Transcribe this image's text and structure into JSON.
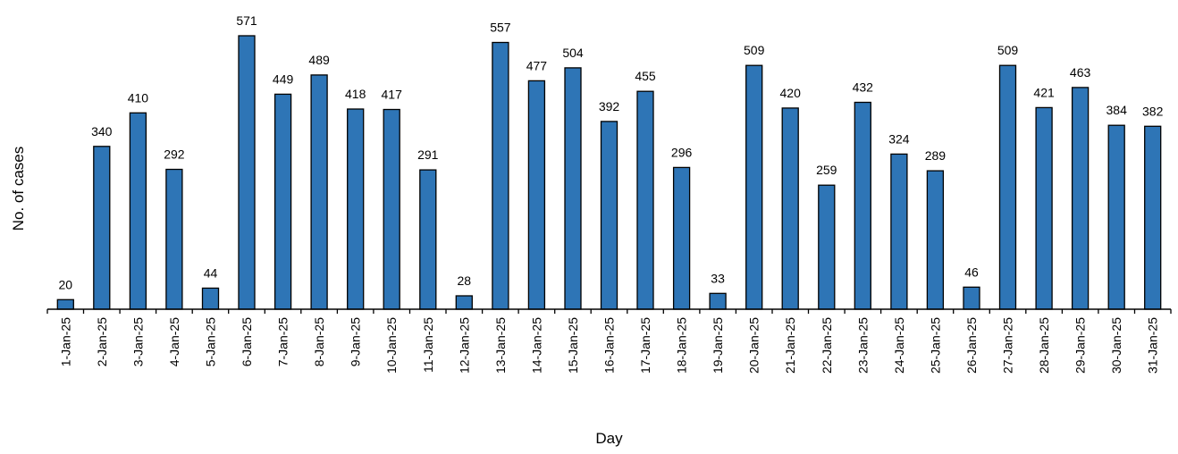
{
  "chart_data": {
    "type": "bar",
    "title": "",
    "xlabel": "Day",
    "ylabel": "No. of cases",
    "categories": [
      "1-Jan-25",
      "2-Jan-25",
      "3-Jan-25",
      "4-Jan-25",
      "5-Jan-25",
      "6-Jan-25",
      "7-Jan-25",
      "8-Jan-25",
      "9-Jan-25",
      "10-Jan-25",
      "11-Jan-25",
      "12-Jan-25",
      "13-Jan-25",
      "14-Jan-25",
      "15-Jan-25",
      "16-Jan-25",
      "17-Jan-25",
      "18-Jan-25",
      "19-Jan-25",
      "20-Jan-25",
      "21-Jan-25",
      "22-Jan-25",
      "23-Jan-25",
      "24-Jan-25",
      "25-Jan-25",
      "26-Jan-25",
      "27-Jan-25",
      "28-Jan-25",
      "29-Jan-25",
      "30-Jan-25",
      "31-Jan-25"
    ],
    "values": [
      20,
      340,
      410,
      292,
      44,
      571,
      449,
      489,
      418,
      417,
      291,
      28,
      557,
      477,
      504,
      392,
      455,
      296,
      33,
      509,
      420,
      259,
      432,
      324,
      289,
      46,
      509,
      421,
      463,
      384,
      382
    ],
    "ylim": [
      0,
      571
    ],
    "grid": false,
    "legend": "none",
    "bar_color": "#2E75B6",
    "bar_edge_color": "#000000",
    "axis_color": "#000000",
    "y_axis_visible": false
  }
}
